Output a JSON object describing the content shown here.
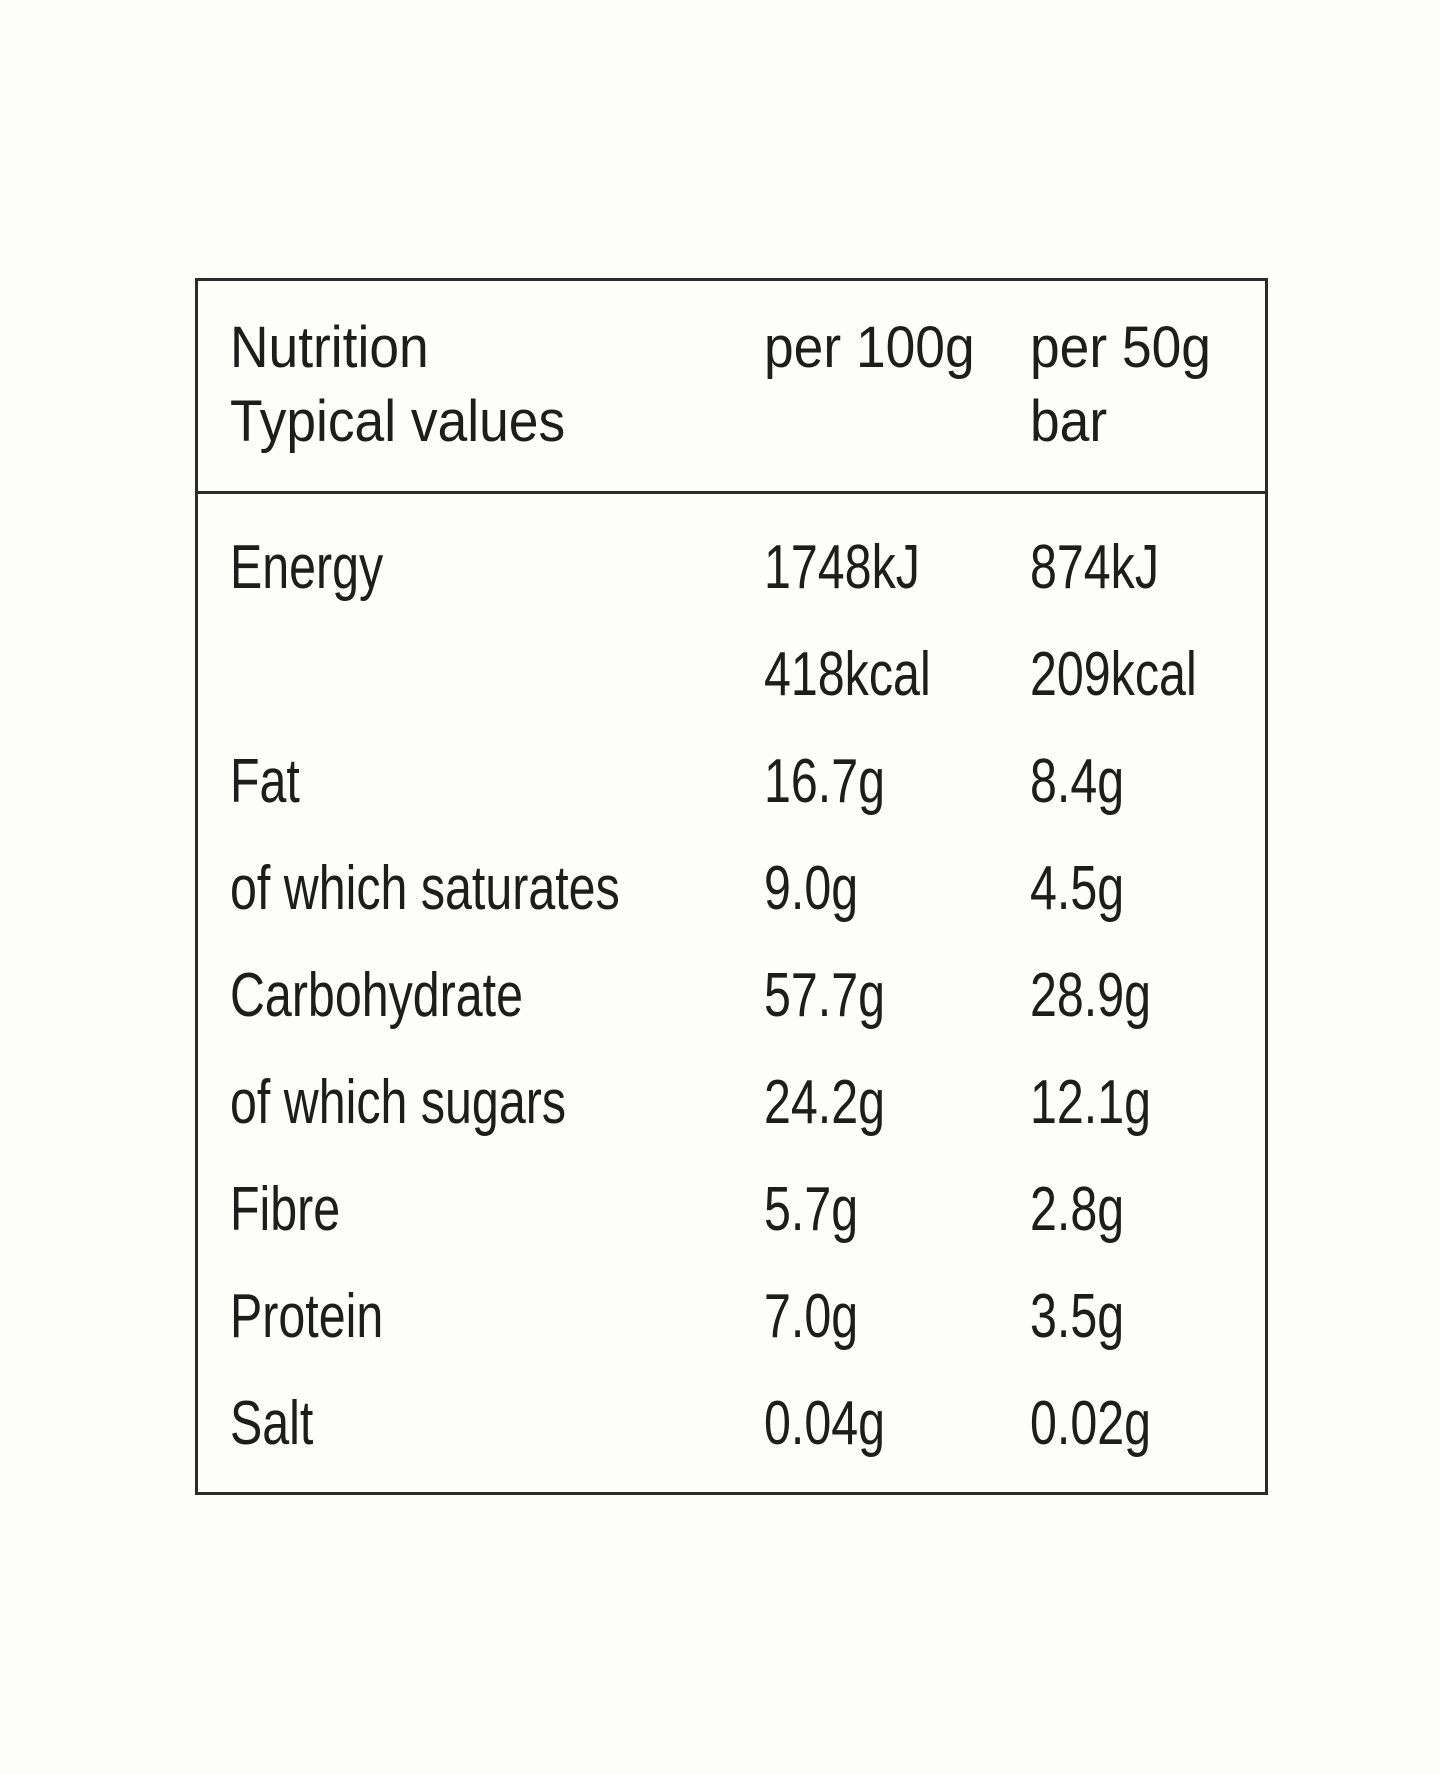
{
  "header": {
    "col1_line1": "Nutrition",
    "col1_line2": "Typical values",
    "col2": "per 100g",
    "col3_line1": "per 50g",
    "col3_line2": "bar"
  },
  "rows": [
    {
      "label": "Energy",
      "per100": "1748kJ",
      "per50": "874kJ"
    },
    {
      "label": "",
      "per100": "418kcal",
      "per50": "209kcal"
    },
    {
      "label": "Fat",
      "per100": "16.7g",
      "per50": "8.4g"
    },
    {
      "label": "of which saturates",
      "per100": "9.0g",
      "per50": "4.5g"
    },
    {
      "label": "Carbohydrate",
      "per100": "57.7g",
      "per50": "28.9g"
    },
    {
      "label": "of which sugars",
      "per100": "24.2g",
      "per50": "12.1g"
    },
    {
      "label": "Fibre",
      "per100": "5.7g",
      "per50": "2.8g"
    },
    {
      "label": "Protein",
      "per100": "7.0g",
      "per50": "3.5g"
    },
    {
      "label": "Salt",
      "per100": "0.04g",
      "per50": "0.02g"
    }
  ]
}
